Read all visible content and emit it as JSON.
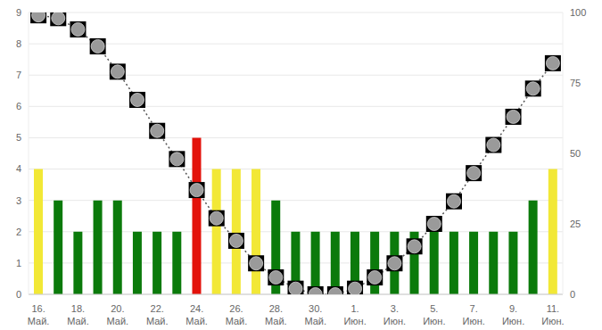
{
  "chart_data": {
    "type": "bar",
    "categories": [
      "16. Май.",
      null,
      "18. Май.",
      null,
      "20. Май.",
      null,
      "22. Май.",
      null,
      "24. Май.",
      null,
      "26. Май.",
      null,
      "28. Май.",
      null,
      "30. Май.",
      null,
      "1. Июн.",
      null,
      "3. Июн.",
      null,
      "5. Июн.",
      null,
      "7. Июн.",
      null,
      "9. Июн.",
      null,
      "11. Июн."
    ],
    "series": [
      {
        "type": "bar",
        "values": [
          4,
          3,
          2,
          3,
          3,
          2,
          2,
          2,
          5,
          4,
          4,
          4,
          3,
          2,
          2,
          2,
          2,
          2,
          2,
          2,
          2,
          2,
          2,
          2,
          2,
          3,
          4
        ],
        "colors": [
          "#f2e836",
          "#0b7a0b",
          "#0b7a0b",
          "#0b7a0b",
          "#0b7a0b",
          "#0b7a0b",
          "#0b7a0b",
          "#0b7a0b",
          "#e3120b",
          "#f2e836",
          "#f2e836",
          "#f2e836",
          "#0b7a0b",
          "#0b7a0b",
          "#0b7a0b",
          "#0b7a0b",
          "#0b7a0b",
          "#0b7a0b",
          "#0b7a0b",
          "#0b7a0b",
          "#0b7a0b",
          "#0b7a0b",
          "#0b7a0b",
          "#0b7a0b",
          "#0b7a0b",
          "#0b7a0b",
          "#f2e836"
        ]
      },
      {
        "type": "line",
        "axis": "y2",
        "color": "#555555",
        "line_style": "dotted",
        "marker": "moon",
        "values": [
          99,
          98,
          94,
          88,
          79,
          69,
          58,
          48,
          37,
          27,
          19,
          11,
          6,
          2,
          0,
          0,
          2,
          6,
          11,
          17,
          25,
          33,
          43,
          53,
          63,
          73,
          82
        ]
      }
    ],
    "ylim": [
      0,
      9
    ],
    "yticks": [
      0,
      1,
      2,
      3,
      4,
      5,
      6,
      7,
      8,
      9
    ],
    "y2lim": [
      0,
      100
    ],
    "y2ticks": [
      0,
      25,
      50,
      75,
      100
    ],
    "grid": true
  }
}
